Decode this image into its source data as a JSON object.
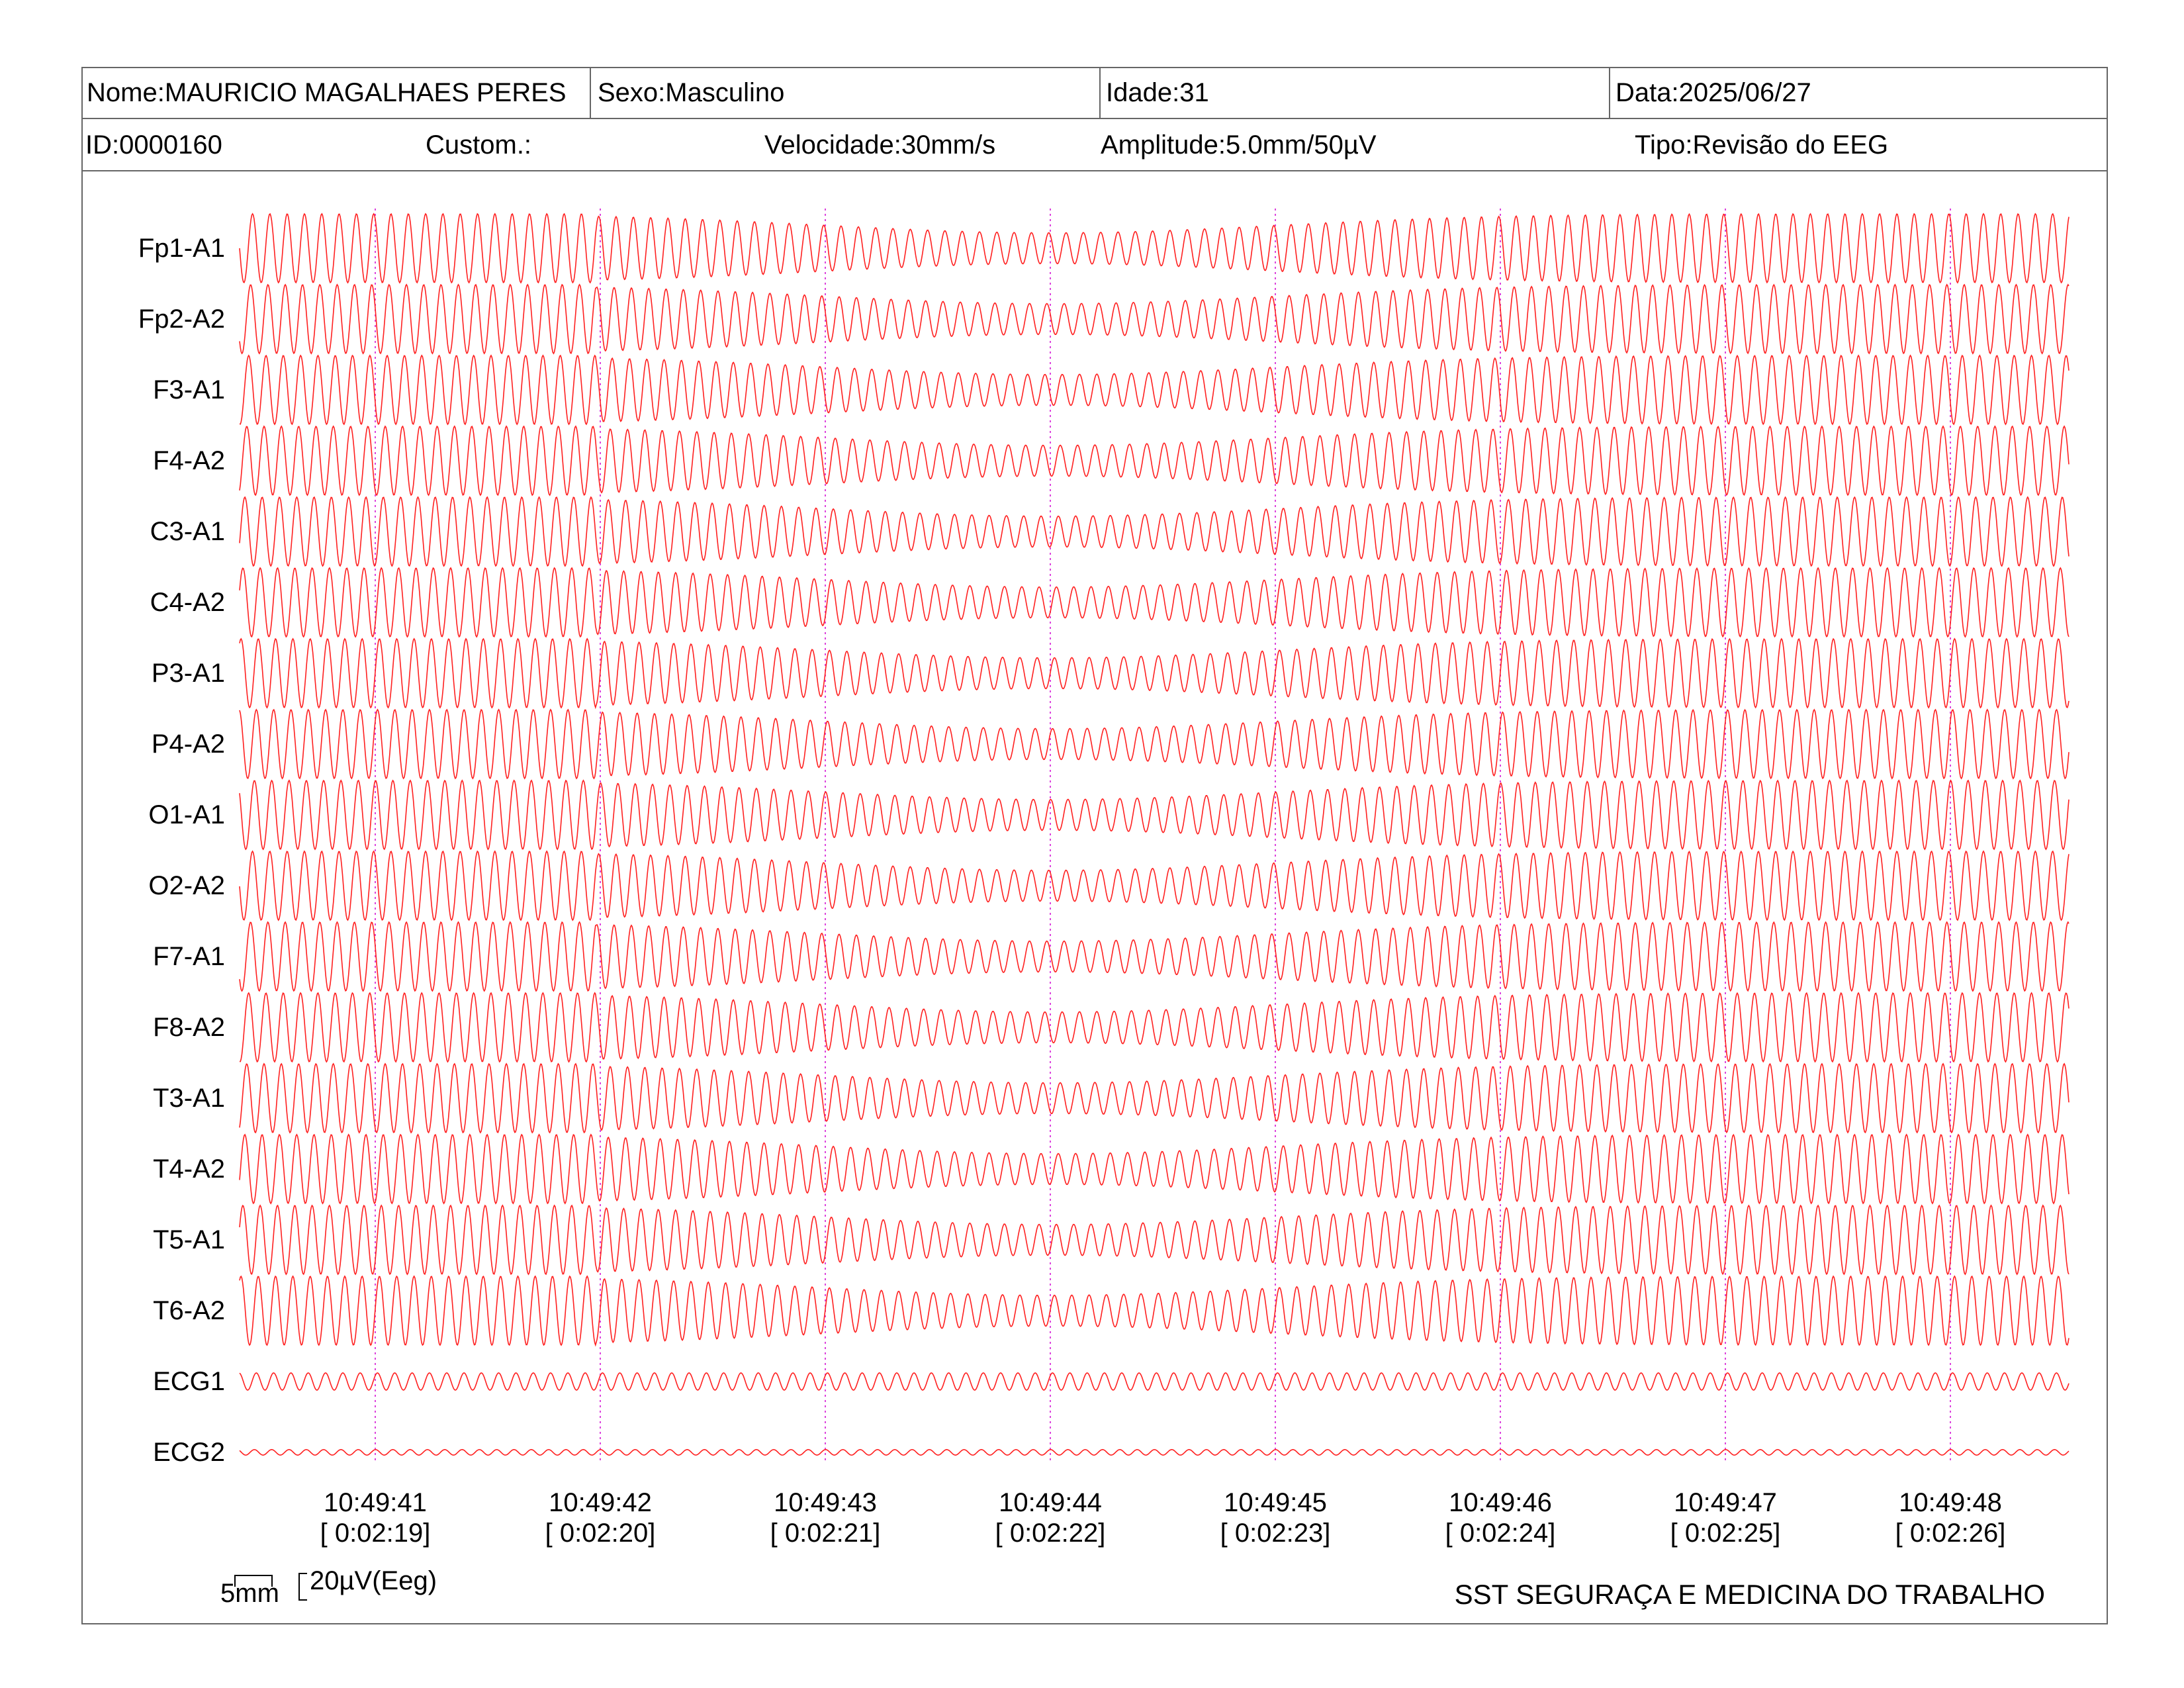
{
  "header": {
    "nome": "Nome:MAURICIO MAGALHAES PERES",
    "sexo": "Sexo:Masculino",
    "idade": "Idade:31",
    "data": "Data:2025/06/27",
    "id": "ID:0000160",
    "custom": "Custom.:",
    "velocidade": "Velocidade:30mm/s",
    "amplitude": "Amplitude:5.0mm/50µV",
    "tipo": "Tipo:Revisão do EEG"
  },
  "colors": {
    "trace": "#ff2020",
    "marker": "#dd44dd",
    "border": "#666666"
  },
  "chart_data": {
    "type": "line",
    "channels": [
      {
        "name": "Fp1-A1",
        "amplitude": 1.0
      },
      {
        "name": "Fp2-A2",
        "amplitude": 1.0
      },
      {
        "name": "F3-A1",
        "amplitude": 1.0
      },
      {
        "name": "F4-A2",
        "amplitude": 1.0
      },
      {
        "name": "C3-A1",
        "amplitude": 1.0
      },
      {
        "name": "C4-A2",
        "amplitude": 1.0
      },
      {
        "name": "P3-A1",
        "amplitude": 1.0
      },
      {
        "name": "P4-A2",
        "amplitude": 1.0
      },
      {
        "name": "O1-A1",
        "amplitude": 1.0
      },
      {
        "name": "O2-A2",
        "amplitude": 1.0
      },
      {
        "name": "F7-A1",
        "amplitude": 1.0
      },
      {
        "name": "F8-A2",
        "amplitude": 1.0
      },
      {
        "name": "T3-A1",
        "amplitude": 1.0
      },
      {
        "name": "T4-A2",
        "amplitude": 1.0
      },
      {
        "name": "T5-A1",
        "amplitude": 1.0
      },
      {
        "name": "T6-A2",
        "amplitude": 1.0
      },
      {
        "name": "ECG1",
        "amplitude": 0.25
      },
      {
        "name": "ECG2",
        "amplitude": 0.08
      }
    ],
    "time_ticks": [
      {
        "clock": "10:49:41",
        "elapsed": "[ 0:02:19]"
      },
      {
        "clock": "10:49:42",
        "elapsed": "[ 0:02:20]"
      },
      {
        "clock": "10:49:43",
        "elapsed": "[ 0:02:21]"
      },
      {
        "clock": "10:49:44",
        "elapsed": "[ 0:02:22]"
      },
      {
        "clock": "10:49:45",
        "elapsed": "[ 0:02:23]"
      },
      {
        "clock": "10:49:46",
        "elapsed": "[ 0:02:24]"
      },
      {
        "clock": "10:49:47",
        "elapsed": "[ 0:02:25]"
      },
      {
        "clock": "10:49:48",
        "elapsed": "[ 0:02:26]"
      }
    ],
    "cycles_per_second": 13,
    "grid": false
  },
  "scale": {
    "length": "5mm",
    "voltage": "20µV(Eeg)"
  },
  "footer": {
    "company": "SST SEGURAÇA E MEDICINA DO TRABALHO"
  }
}
